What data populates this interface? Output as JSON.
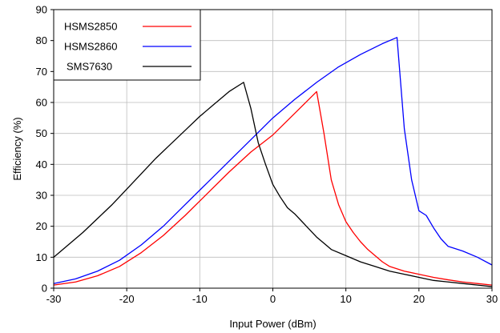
{
  "chart_data": {
    "type": "line",
    "title": "",
    "xlabel": "Input Power (dBm)",
    "ylabel": "Efficiency (%)",
    "xlim": [
      -30,
      30
    ],
    "ylim": [
      0,
      90
    ],
    "xticks": [
      -30,
      -20,
      -10,
      0,
      10,
      20,
      30
    ],
    "yticks": [
      0,
      10,
      20,
      30,
      40,
      50,
      60,
      70,
      80,
      90
    ],
    "grid": true,
    "legend_position": "top-left",
    "series": [
      {
        "name": "HSMS2850",
        "color": "#ff0000",
        "x": [
          -30,
          -27,
          -24,
          -21,
          -18,
          -15,
          -12,
          -9,
          -6,
          -3,
          0,
          3,
          6,
          7,
          8,
          9,
          10,
          11,
          12,
          13,
          14,
          15,
          16,
          18,
          20,
          22,
          24,
          26,
          28,
          30
        ],
        "y": [
          1,
          2,
          4,
          7,
          11.5,
          17,
          23.5,
          30.5,
          37.5,
          44,
          49.5,
          56.5,
          63.5,
          50,
          35,
          27,
          21.5,
          18,
          15,
          12.5,
          10.5,
          8.5,
          7,
          5.5,
          4.5,
          3.5,
          2.7,
          2,
          1.5,
          1
        ]
      },
      {
        "name": "HSMS2860",
        "color": "#0000ff",
        "x": [
          -30,
          -27,
          -24,
          -21,
          -18,
          -15,
          -12,
          -9,
          -6,
          -3,
          0,
          3,
          6,
          9,
          12,
          15,
          17,
          18,
          19,
          20,
          21,
          22,
          23,
          24,
          26,
          28,
          30
        ],
        "y": [
          1.5,
          3,
          5.5,
          9,
          14,
          20,
          27,
          34,
          41,
          48,
          55,
          61,
          66.5,
          71.5,
          75.5,
          79,
          81,
          51.5,
          35,
          25,
          23.5,
          19.5,
          16,
          13.5,
          12,
          10,
          7.5
        ]
      },
      {
        "name": "SMS7630",
        "color": "#000000",
        "x": [
          -30,
          -28,
          -26,
          -24,
          -22,
          -20,
          -18,
          -16,
          -14,
          -12,
          -10,
          -8,
          -6,
          -4,
          -3,
          -2,
          -1,
          0,
          1,
          2,
          3,
          4,
          5,
          6,
          7,
          8,
          10,
          12,
          14,
          16,
          18,
          20,
          22,
          24,
          26,
          28,
          30
        ],
        "y": [
          10,
          14,
          18,
          22.5,
          27,
          32,
          37,
          42,
          46.5,
          51,
          55.5,
          59.5,
          63.5,
          66.5,
          58,
          47,
          40,
          33.5,
          29.5,
          26,
          24,
          21.5,
          19,
          16.5,
          14.5,
          12.5,
          10.5,
          8.5,
          7,
          5.5,
          4.5,
          3.5,
          2.5,
          2,
          1.5,
          1,
          0.5
        ]
      }
    ]
  }
}
